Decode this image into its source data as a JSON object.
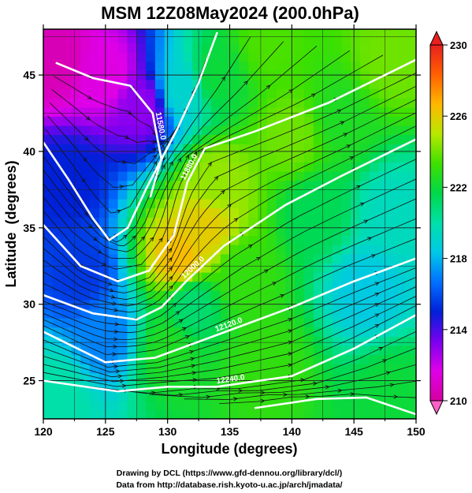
{
  "chart_data": {
    "type": "heatmap",
    "title": "MSM 12Z08May2024 (200.0hPa)",
    "xlabel": "Longitude (degrees)",
    "ylabel": "Latitude  (degrees)",
    "xlim": [
      120,
      150
    ],
    "ylim": [
      22.5,
      48
    ],
    "x_ticks": [
      "120",
      "125",
      "130",
      "135",
      "140",
      "145",
      "150"
    ],
    "y_ticks": [
      "25",
      "30",
      "35",
      "40",
      "45"
    ],
    "x_tick_values": [
      120,
      125,
      130,
      135,
      140,
      145,
      150
    ],
    "y_tick_values": [
      25,
      30,
      35,
      40,
      45
    ],
    "colorbar": {
      "min": 210,
      "max": 230,
      "tick_values": [
        210,
        214,
        218,
        222,
        226,
        230
      ],
      "tick_labels": [
        "210",
        "214",
        "218",
        "222",
        "226",
        "230"
      ],
      "colors": [
        "#d400a0",
        "#e000e8",
        "#7a00f0",
        "#0020d8",
        "#0070ff",
        "#00c8e8",
        "#00e0a8",
        "#00d84a",
        "#3ee000",
        "#b8e800",
        "#ffb800",
        "#ff6000",
        "#e82020"
      ]
    },
    "temperature_field": [
      {
        "lon": 121,
        "lat": 46,
        "value": 210.5
      },
      {
        "lon": 125,
        "lat": 45,
        "value": 211.5
      },
      {
        "lon": 128,
        "lat": 43,
        "value": 213
      },
      {
        "lon": 122,
        "lat": 38,
        "value": 215
      },
      {
        "lon": 123,
        "lat": 32,
        "value": 215.5
      },
      {
        "lon": 131,
        "lat": 44,
        "value": 219
      },
      {
        "lon": 134,
        "lat": 45,
        "value": 222
      },
      {
        "lon": 138,
        "lat": 47,
        "value": 223.5
      },
      {
        "lon": 134,
        "lat": 38,
        "value": 224.5
      },
      {
        "lon": 140,
        "lat": 41,
        "value": 224
      },
      {
        "lon": 131,
        "lat": 33,
        "value": 226.5
      },
      {
        "lon": 133,
        "lat": 35,
        "value": 226
      },
      {
        "lon": 144,
        "lat": 42,
        "value": 222.5
      },
      {
        "lon": 148,
        "lat": 46,
        "value": 224
      },
      {
        "lon": 142,
        "lat": 36,
        "value": 221.5
      },
      {
        "lon": 148,
        "lat": 36,
        "value": 219.5
      },
      {
        "lon": 136,
        "lat": 32,
        "value": 223
      },
      {
        "lon": 146,
        "lat": 31,
        "value": 218.5
      },
      {
        "lon": 125,
        "lat": 28,
        "value": 217
      },
      {
        "lon": 130,
        "lat": 27,
        "value": 222.5
      },
      {
        "lon": 138,
        "lat": 26,
        "value": 223
      },
      {
        "lon": 148,
        "lat": 24,
        "value": 222
      },
      {
        "lon": 121,
        "lat": 24,
        "value": 220
      },
      {
        "lon": 132,
        "lat": 30,
        "value": 221
      }
    ],
    "height_contours": [
      {
        "label": "11580.0",
        "path": [
          [
            121,
            45.8
          ],
          [
            124,
            44.8
          ],
          [
            127,
            44.3
          ],
          [
            128.8,
            42.5
          ],
          [
            129.5,
            39.5
          ],
          [
            128.6,
            37
          ]
        ]
      },
      {
        "label": "",
        "path": [
          [
            120,
            40.6
          ],
          [
            122,
            38.2
          ],
          [
            124,
            35.6
          ],
          [
            125.3,
            34.2
          ],
          [
            126.8,
            35
          ],
          [
            128.3,
            37.6
          ],
          [
            130.8,
            41.5
          ],
          [
            132.5,
            44.5
          ],
          [
            134,
            47.8
          ]
        ]
      },
      {
        "label": "11880.0",
        "path": [
          [
            120,
            35.2
          ],
          [
            123,
            32.5
          ],
          [
            126,
            31.5
          ],
          [
            128.5,
            32.2
          ],
          [
            130.5,
            34.5
          ],
          [
            131.6,
            38
          ],
          [
            133,
            40.2
          ],
          [
            137,
            41.3
          ],
          [
            143,
            43.2
          ],
          [
            150,
            46
          ]
        ]
      },
      {
        "label": "12000.0",
        "path": [
          [
            120,
            30.6
          ],
          [
            124,
            29.4
          ],
          [
            127.5,
            29
          ],
          [
            129.5,
            29.8
          ],
          [
            131.5,
            31.5
          ],
          [
            134.5,
            33.8
          ],
          [
            139.5,
            36.5
          ],
          [
            144,
            38.4
          ],
          [
            150,
            40.8
          ]
        ]
      },
      {
        "label": "12120.0",
        "path": [
          [
            120,
            28.2
          ],
          [
            125,
            26.2
          ],
          [
            129,
            26.5
          ],
          [
            134,
            28
          ],
          [
            140,
            29.8
          ],
          [
            145,
            31.5
          ],
          [
            150,
            33
          ]
        ]
      },
      {
        "label": "12240.0",
        "path": [
          [
            120,
            25
          ],
          [
            126,
            24.3
          ],
          [
            130,
            24.6
          ],
          [
            134,
            24.6
          ],
          [
            140,
            25.3
          ],
          [
            145,
            27.1
          ],
          [
            150,
            29.3
          ]
        ]
      },
      {
        "label": "",
        "path": [
          [
            137,
            23.2
          ],
          [
            142,
            23.8
          ],
          [
            146,
            23.9
          ],
          [
            150,
            22.8
          ]
        ]
      }
    ],
    "streamlines_description": "Jet flow curving southward through the Korean Peninsula to about 30N then northeastward over Japan",
    "grid": true
  },
  "footer": {
    "line1": "Drawing by DCL (https://www.gfd-dennou.org/library/dcl/)",
    "line2": "Data from http://database.rish.kyoto-u.ac.jp/arch/jmadata/"
  }
}
